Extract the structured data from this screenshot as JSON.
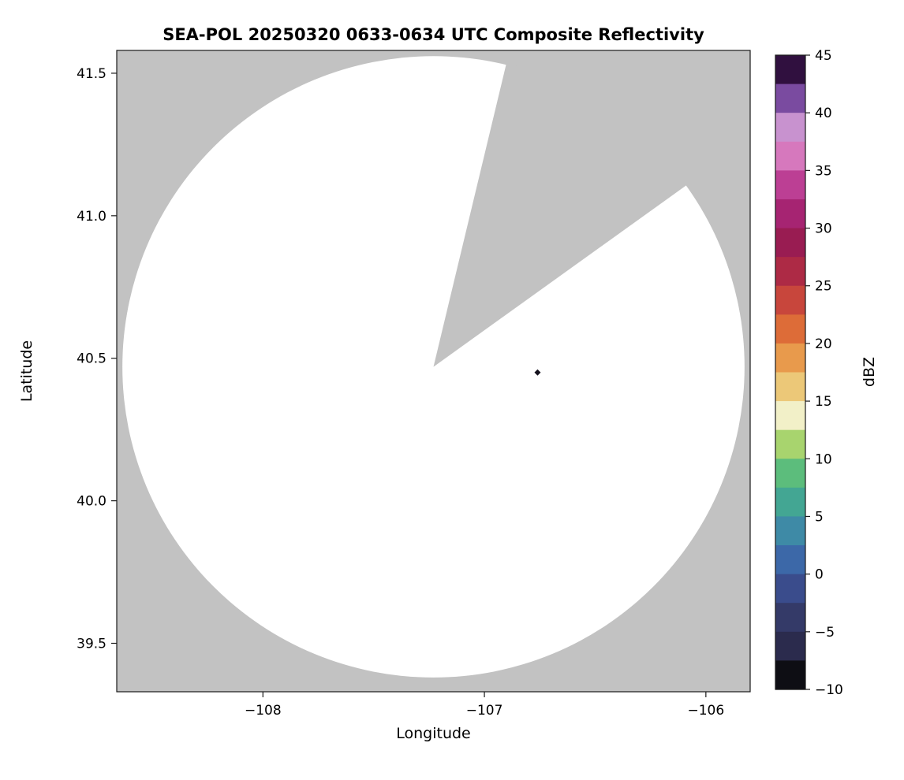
{
  "chart_data": {
    "type": "heatmap",
    "title": "SEA-POL 20250320 0633-0634 UTC Composite Reflectivity",
    "xlabel": "Longitude",
    "ylabel": "Latitude",
    "xlim": [
      -108.66,
      -105.8
    ],
    "ylim": [
      39.33,
      41.58
    ],
    "grid": false,
    "legend": "none",
    "xticks": {
      "values": [
        -108,
        -107,
        -106
      ],
      "labels": [
        "−108",
        "−107",
        "−106"
      ]
    },
    "yticks": {
      "values": [
        39.5,
        40.0,
        40.5,
        41.0,
        41.5
      ],
      "labels": [
        "39.5",
        "40.0",
        "40.5",
        "41.0",
        "41.5"
      ]
    },
    "radar": {
      "center_lon": -107.23,
      "center_lat": 40.47,
      "range_deg_lat": 1.09,
      "blanked_sector_azimuth_deg": [
        13.5,
        54.3
      ],
      "coverage_color": "#ffffff",
      "no_data_color": "#c2c2c2"
    },
    "echoes": [
      {
        "lon": -106.76,
        "lat": 40.45,
        "approx_dbz": -8,
        "color": "#15121e"
      }
    ],
    "colorbar": {
      "label": "dBZ",
      "min": -10,
      "max": 45,
      "ticks": {
        "values": [
          45,
          40,
          35,
          30,
          25,
          20,
          15,
          10,
          5,
          0,
          -5,
          -10
        ],
        "labels": [
          "45",
          "40",
          "35",
          "30",
          "25",
          "20",
          "15",
          "10",
          "5",
          "0",
          "−5",
          "−10"
        ]
      },
      "band_step_dbz": 2.5,
      "band_colors_top_to_bottom": [
        "#30103f",
        "#7a4ba0",
        "#c892cf",
        "#d678bd",
        "#bc3f94",
        "#a62472",
        "#991c52",
        "#ad2a45",
        "#c8463c",
        "#dd6c38",
        "#e89a4c",
        "#ecc878",
        "#f2f0c8",
        "#a8d46e",
        "#5cbd7c",
        "#43a693",
        "#3e8aa6",
        "#3c68a8",
        "#3a4c8c",
        "#343a68",
        "#2b2b4d",
        "#0e0e14"
      ]
    },
    "frame_color": "#1a1a1a"
  }
}
